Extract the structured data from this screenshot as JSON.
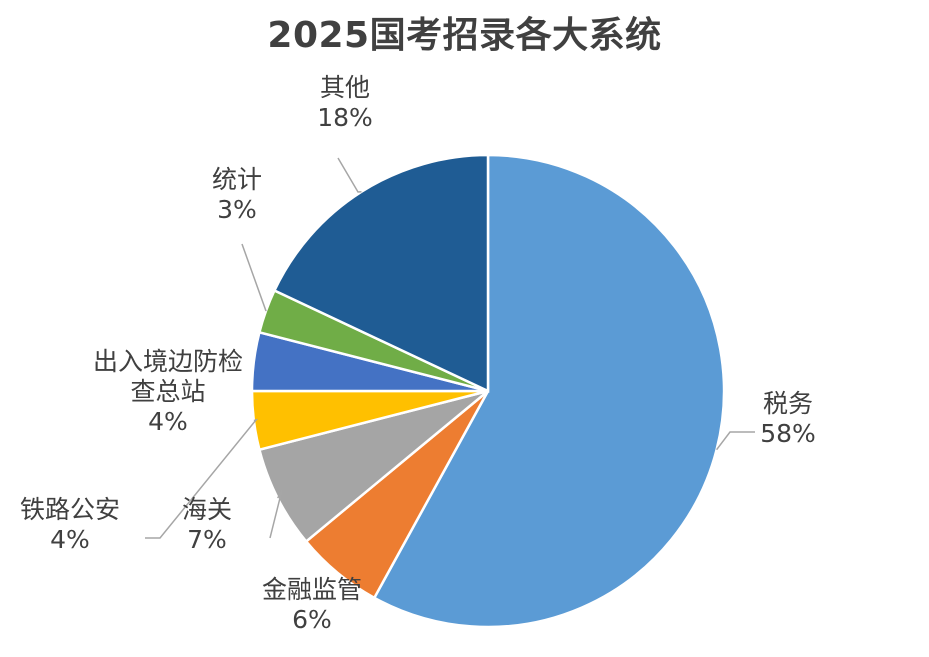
{
  "chart_data": {
    "type": "pie",
    "title": "2025国考招录各大系统",
    "slices": [
      {
        "name": "税务",
        "value": 58,
        "label": "58%",
        "color": "#5b9bd5"
      },
      {
        "name": "金融监管",
        "value": 6,
        "label": "6%",
        "color": "#ed7d31"
      },
      {
        "name": "海关",
        "value": 7,
        "label": "7%",
        "color": "#a5a5a5"
      },
      {
        "name": "铁路公安",
        "value": 4,
        "label": "4%",
        "color": "#ffc000"
      },
      {
        "name": "出入境边防检查总站",
        "value": 4,
        "label": "4%",
        "color": "#4472c4"
      },
      {
        "name": "统计",
        "value": 3,
        "label": "3%",
        "color": "#70ad47"
      },
      {
        "name": "其他",
        "value": 18,
        "label": "18%",
        "color": "#1f5c94"
      }
    ],
    "legend": "none",
    "data_labels": "outside with leader lines"
  }
}
